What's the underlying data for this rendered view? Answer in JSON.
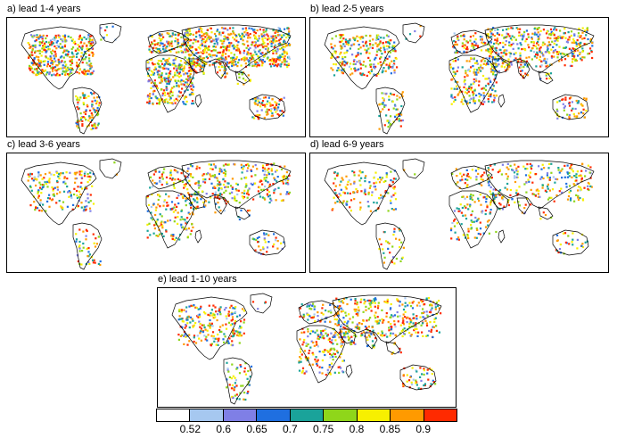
{
  "panels": [
    {
      "title": "a) lead 1-4 years",
      "density": 1.0
    },
    {
      "title": "b) lead 2-5 years",
      "density": 0.65
    },
    {
      "title": "c) lead 3-6 years",
      "density": 0.45
    },
    {
      "title": "d) lead 6-9 years",
      "density": 0.35
    },
    {
      "title": "e) lead 1-10 years",
      "density": 0.55
    }
  ],
  "colorbar": {
    "colors": [
      "#ffffff",
      "#a6c8f0",
      "#7f7fe6",
      "#1f6fe0",
      "#1aa39a",
      "#8fd61a",
      "#f7f000",
      "#ff9a00",
      "#ff2a00"
    ],
    "tick_labels": [
      "0.52",
      "0.6",
      "0.65",
      "0.7",
      "0.75",
      "0.8",
      "0.85",
      "0.9"
    ]
  }
}
